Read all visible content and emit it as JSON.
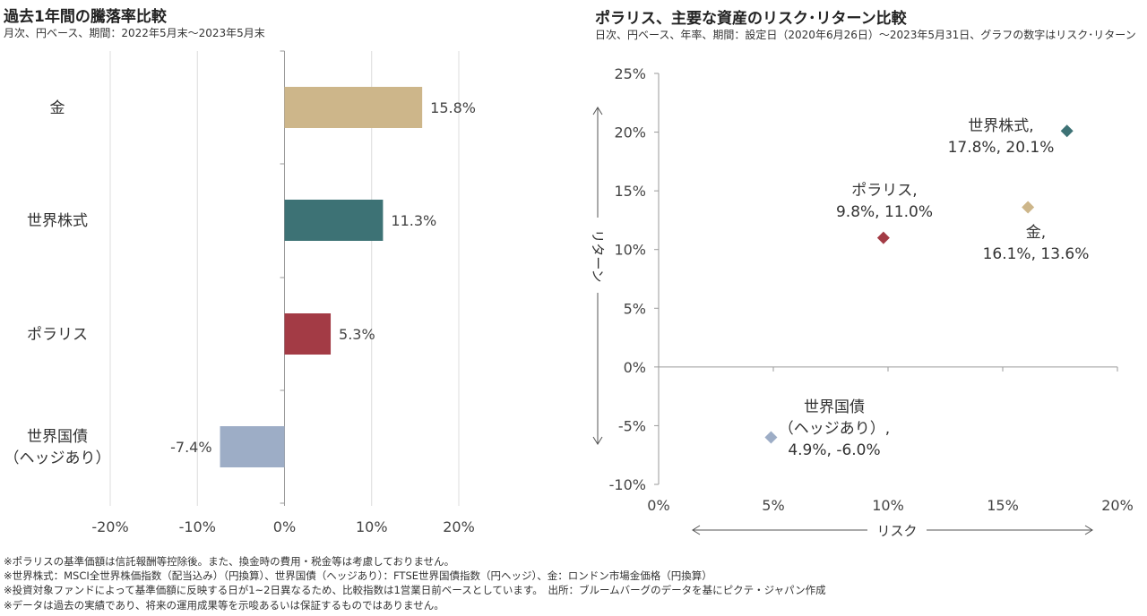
{
  "left": {
    "title": "過去1年間の騰落率比較",
    "subtitle": "月次、円ベース、期間：2022年5月末～2023年5月末"
  },
  "right": {
    "title": "ポラリス、主要な資産のリスク･リターン比較",
    "subtitle": "日次、円ベース、年率、期間：設定日（2020年6月26日）～2023年5月31日、グラフの数字はリスク･リターン"
  },
  "footnotes": [
    "※ポラリスの基準価額は信託報酬等控除後。また、換金時の費用・税金等は考慮しておりません。",
    "※世界株式：MSCI全世界株価指数（配当込み）（円換算）、世界国債（ヘッジあり）：FTSE世界国債指数（円ヘッジ）、金：ロンドン市場金価格（円換算）",
    "※投資対象ファンドによって基準価額に反映する日が1~2日異なるため、比較指数は1営業日前ベースとしています。　出所：ブルームバーグのデータを基にピクテ・ジャパン作成",
    "※データは過去の実績であり、将来の運用成果等を示唆あるいは保証するものではありません。"
  ],
  "chart_data": [
    {
      "type": "bar",
      "orientation": "horizontal",
      "categories": [
        [
          "金"
        ],
        [
          "世界株式"
        ],
        [
          "ポラリス"
        ],
        [
          "世界国債",
          "（ヘッジあり）"
        ]
      ],
      "values": [
        15.8,
        11.3,
        5.3,
        -7.4
      ],
      "value_labels": [
        "15.8%",
        "11.3%",
        "5.3%",
        "-7.4%"
      ],
      "colors": [
        "#cdb68a",
        "#3d7275",
        "#a33b45",
        "#9dadc6"
      ],
      "xlim": [
        -20,
        20
      ],
      "xticks": [
        -20,
        -10,
        0,
        10,
        20
      ],
      "xtick_labels": [
        "-20%",
        "-10%",
        "0%",
        "10%",
        "20%"
      ],
      "grid": true
    },
    {
      "type": "scatter",
      "xlabel": "リスク",
      "ylabel": "リターン",
      "xlim": [
        0,
        20
      ],
      "ylim": [
        -10,
        25
      ],
      "xticks": [
        0,
        5,
        10,
        15,
        20
      ],
      "xtick_labels": [
        "0%",
        "5%",
        "10%",
        "15%",
        "20%"
      ],
      "yticks": [
        -10,
        -5,
        0,
        5,
        10,
        15,
        20,
        25
      ],
      "ytick_labels": [
        "-10%",
        "-5%",
        "0%",
        "5%",
        "10%",
        "15%",
        "20%",
        "25%"
      ],
      "points": [
        {
          "name": "世界株式",
          "x": 17.8,
          "y": 20.1,
          "color": "#3d7275",
          "label": [
            "世界株式,",
            "17.8%, 20.1%"
          ]
        },
        {
          "name": "ポラリス",
          "x": 9.8,
          "y": 11.0,
          "color": "#a33b45",
          "label": [
            "ポラリス,",
            "9.8%, 11.0%"
          ]
        },
        {
          "name": "金",
          "x": 16.1,
          "y": 13.6,
          "color": "#cdb68a",
          "label": [
            "金,",
            "16.1%, 13.6%"
          ]
        },
        {
          "name": "世界国債（ヘッジあり）",
          "x": 4.9,
          "y": -6.0,
          "color": "#9dadc6",
          "label": [
            "世界国債",
            "（ヘッジあり）,",
            "4.9%, -6.0%"
          ]
        }
      ]
    }
  ]
}
